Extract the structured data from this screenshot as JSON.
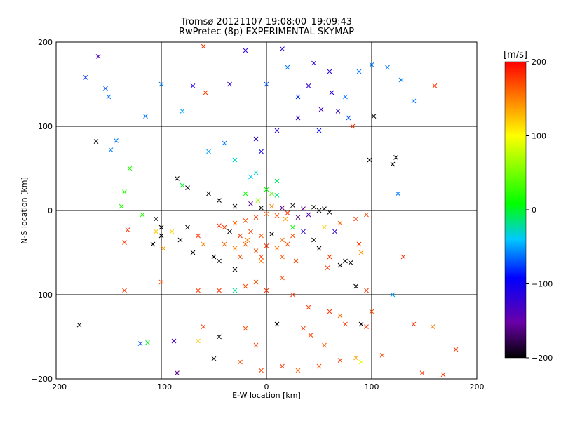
{
  "title_line1": "Tromsø 20121107 19:08:00–19:09:43",
  "title_line2": "RwPretec (8p) EXPERIMENTAL SKYMAP",
  "chart_data": {
    "type": "scatter",
    "title": "Tromsø 20121107 19:08:00–19:09:43 / RwPretec (8p) EXPERIMENTAL SKYMAP",
    "xlabel": "E-W location [km]",
    "ylabel": "N-S location [km]",
    "xlim": [
      -200,
      200
    ],
    "ylim": [
      -200,
      200
    ],
    "xticks": [
      -200,
      -100,
      0,
      100,
      200
    ],
    "yticks": [
      -200,
      -100,
      0,
      100,
      200
    ],
    "grid": true,
    "colorbar": {
      "label": "[m/s]",
      "range": [
        -200,
        200
      ],
      "ticks": [
        200,
        100,
        0,
        -100,
        -200
      ],
      "colormap": [
        "#000000",
        "#6a00a8",
        "#0000ff",
        "#00c8ff",
        "#00ff00",
        "#ffff00",
        "#ff0000"
      ]
    },
    "points": [
      {
        "x": -160,
        "y": 183,
        "v": -130
      },
      {
        "x": -143,
        "y": 83,
        "v": -60
      },
      {
        "x": -150,
        "y": 135,
        "v": -60
      },
      {
        "x": -100,
        "y": 150,
        "v": -60
      },
      {
        "x": -80,
        "y": 118,
        "v": -50
      },
      {
        "x": -70,
        "y": 148,
        "v": -110
      },
      {
        "x": -58,
        "y": 140,
        "v": 175
      },
      {
        "x": -20,
        "y": 190,
        "v": -120
      },
      {
        "x": 15,
        "y": 192,
        "v": -120
      },
      {
        "x": 20,
        "y": 170,
        "v": -60
      },
      {
        "x": 45,
        "y": 175,
        "v": -110
      },
      {
        "x": 60,
        "y": 165,
        "v": -120
      },
      {
        "x": 40,
        "y": 148,
        "v": -120
      },
      {
        "x": 62,
        "y": 140,
        "v": -110
      },
      {
        "x": 75,
        "y": 135,
        "v": -60
      },
      {
        "x": 88,
        "y": 165,
        "v": -60
      },
      {
        "x": 100,
        "y": 173,
        "v": -60
      },
      {
        "x": 115,
        "y": 170,
        "v": -60
      },
      {
        "x": 128,
        "y": 155,
        "v": -60
      },
      {
        "x": 160,
        "y": 148,
        "v": 180
      },
      {
        "x": 140,
        "y": 130,
        "v": -60
      },
      {
        "x": 30,
        "y": 110,
        "v": -120
      },
      {
        "x": 10,
        "y": 95,
        "v": -120
      },
      {
        "x": -10,
        "y": 85,
        "v": -120
      },
      {
        "x": -40,
        "y": 80,
        "v": -60
      },
      {
        "x": -55,
        "y": 70,
        "v": -50
      },
      {
        "x": -30,
        "y": 60,
        "v": -30
      },
      {
        "x": -10,
        "y": 45,
        "v": -30
      },
      {
        "x": 10,
        "y": 35,
        "v": -10
      },
      {
        "x": 0,
        "y": 25,
        "v": 10
      },
      {
        "x": -20,
        "y": 20,
        "v": 10
      },
      {
        "x": 10,
        "y": 18,
        "v": -15
      },
      {
        "x": 82,
        "y": 100,
        "v": 180
      },
      {
        "x": 102,
        "y": 112,
        "v": -200
      },
      {
        "x": -162,
        "y": 82,
        "v": -200
      },
      {
        "x": -85,
        "y": 38,
        "v": -200
      },
      {
        "x": -80,
        "y": 30,
        "v": 0
      },
      {
        "x": -75,
        "y": 27,
        "v": -200
      },
      {
        "x": -55,
        "y": 20,
        "v": -200
      },
      {
        "x": -45,
        "y": 12,
        "v": -200
      },
      {
        "x": -30,
        "y": 5,
        "v": -200
      },
      {
        "x": -15,
        "y": 8,
        "v": -160
      },
      {
        "x": -5,
        "y": 3,
        "v": -200
      },
      {
        "x": 5,
        "y": 5,
        "v": 150
      },
      {
        "x": 15,
        "y": 3,
        "v": -160
      },
      {
        "x": 25,
        "y": 6,
        "v": -200
      },
      {
        "x": 35,
        "y": 2,
        "v": -160
      },
      {
        "x": 45,
        "y": 4,
        "v": -200
      },
      {
        "x": 50,
        "y": 0,
        "v": -200
      },
      {
        "x": 55,
        "y": 2,
        "v": -200
      },
      {
        "x": 60,
        "y": -2,
        "v": -200
      },
      {
        "x": 40,
        "y": -5,
        "v": -140
      },
      {
        "x": 30,
        "y": -8,
        "v": -170
      },
      {
        "x": 20,
        "y": -3,
        "v": 180
      },
      {
        "x": 10,
        "y": -6,
        "v": 170
      },
      {
        "x": 0,
        "y": -4,
        "v": 160
      },
      {
        "x": -10,
        "y": -8,
        "v": 180
      },
      {
        "x": -20,
        "y": -12,
        "v": 170
      },
      {
        "x": -30,
        "y": -15,
        "v": 160
      },
      {
        "x": -40,
        "y": -20,
        "v": 175
      },
      {
        "x": -45,
        "y": -18,
        "v": 185
      },
      {
        "x": -35,
        "y": -25,
        "v": -200
      },
      {
        "x": -25,
        "y": -30,
        "v": 180
      },
      {
        "x": -15,
        "y": -25,
        "v": 175
      },
      {
        "x": -5,
        "y": -30,
        "v": 165
      },
      {
        "x": 5,
        "y": -28,
        "v": -200
      },
      {
        "x": 15,
        "y": -35,
        "v": 160
      },
      {
        "x": 25,
        "y": -30,
        "v": 170
      },
      {
        "x": -40,
        "y": -40,
        "v": 160
      },
      {
        "x": -30,
        "y": -45,
        "v": 150
      },
      {
        "x": -20,
        "y": -40,
        "v": 165
      },
      {
        "x": -10,
        "y": -48,
        "v": 170
      },
      {
        "x": 0,
        "y": -42,
        "v": 180
      },
      {
        "x": 10,
        "y": -45,
        "v": 155
      },
      {
        "x": 20,
        "y": -40,
        "v": 170
      },
      {
        "x": -50,
        "y": -55,
        "v": -200
      },
      {
        "x": -45,
        "y": -60,
        "v": -200
      },
      {
        "x": -25,
        "y": -55,
        "v": 170
      },
      {
        "x": -5,
        "y": -55,
        "v": 175
      },
      {
        "x": 15,
        "y": -55,
        "v": 165
      },
      {
        "x": -60,
        "y": -40,
        "v": 150
      },
      {
        "x": -65,
        "y": -30,
        "v": 180
      },
      {
        "x": -75,
        "y": -20,
        "v": -200
      },
      {
        "x": -82,
        "y": -35,
        "v": -200
      },
      {
        "x": -100,
        "y": -20,
        "v": -200
      },
      {
        "x": -105,
        "y": -25,
        "v": 120
      },
      {
        "x": -108,
        "y": -40,
        "v": -200
      },
      {
        "x": -132,
        "y": -23,
        "v": 180
      },
      {
        "x": -135,
        "y": -38,
        "v": 180
      },
      {
        "x": -138,
        "y": 5,
        "v": 20
      },
      {
        "x": -118,
        "y": -5,
        "v": 20
      },
      {
        "x": -105,
        "y": -10,
        "v": -200
      },
      {
        "x": -100,
        "y": -30,
        "v": -200
      },
      {
        "x": -90,
        "y": -25,
        "v": 120
      },
      {
        "x": -98,
        "y": -45,
        "v": 140
      },
      {
        "x": -70,
        "y": -50,
        "v": -200
      },
      {
        "x": -30,
        "y": -70,
        "v": -200
      },
      {
        "x": 70,
        "y": -65,
        "v": -200
      },
      {
        "x": 75,
        "y": -60,
        "v": -200
      },
      {
        "x": 80,
        "y": -62,
        "v": -200
      },
      {
        "x": 60,
        "y": -55,
        "v": 180
      },
      {
        "x": 50,
        "y": -45,
        "v": -200
      },
      {
        "x": 45,
        "y": -35,
        "v": -200
      },
      {
        "x": 35,
        "y": -25,
        "v": -120
      },
      {
        "x": 25,
        "y": -20,
        "v": 10
      },
      {
        "x": 55,
        "y": -20,
        "v": 120
      },
      {
        "x": 65,
        "y": -25,
        "v": -120
      },
      {
        "x": 70,
        "y": -15,
        "v": 160
      },
      {
        "x": 85,
        "y": -10,
        "v": 180
      },
      {
        "x": 95,
        "y": -5,
        "v": 175
      },
      {
        "x": 88,
        "y": -40,
        "v": 180
      },
      {
        "x": 90,
        "y": -50,
        "v": 140
      },
      {
        "x": 58,
        "y": -68,
        "v": 180
      },
      {
        "x": 85,
        "y": -90,
        "v": -200
      },
      {
        "x": 95,
        "y": -95,
        "v": 180
      },
      {
        "x": 120,
        "y": -100,
        "v": -50
      },
      {
        "x": 130,
        "y": -55,
        "v": 180
      },
      {
        "x": -135,
        "y": -95,
        "v": 180
      },
      {
        "x": -100,
        "y": -85,
        "v": 170
      },
      {
        "x": -65,
        "y": -95,
        "v": 175
      },
      {
        "x": -45,
        "y": -95,
        "v": 180
      },
      {
        "x": -30,
        "y": -95,
        "v": -20
      },
      {
        "x": -20,
        "y": -90,
        "v": 170
      },
      {
        "x": -10,
        "y": -85,
        "v": 165
      },
      {
        "x": 0,
        "y": -95,
        "v": 180
      },
      {
        "x": 15,
        "y": -80,
        "v": 170
      },
      {
        "x": 25,
        "y": -100,
        "v": 180
      },
      {
        "x": 40,
        "y": -115,
        "v": 175
      },
      {
        "x": 60,
        "y": -120,
        "v": 180
      },
      {
        "x": 70,
        "y": -125,
        "v": 160
      },
      {
        "x": 75,
        "y": -135,
        "v": 180
      },
      {
        "x": 90,
        "y": -135,
        "v": -200
      },
      {
        "x": 95,
        "y": -138,
        "v": 180
      },
      {
        "x": 100,
        "y": -120,
        "v": 170
      },
      {
        "x": 140,
        "y": -135,
        "v": 180
      },
      {
        "x": 158,
        "y": -138,
        "v": 150
      },
      {
        "x": -60,
        "y": -138,
        "v": 180
      },
      {
        "x": -45,
        "y": -150,
        "v": -200
      },
      {
        "x": -20,
        "y": -140,
        "v": 170
      },
      {
        "x": -10,
        "y": -160,
        "v": 175
      },
      {
        "x": 10,
        "y": -135,
        "v": -200
      },
      {
        "x": 35,
        "y": -140,
        "v": 180
      },
      {
        "x": 42,
        "y": -148,
        "v": 175
      },
      {
        "x": 55,
        "y": -160,
        "v": 165
      },
      {
        "x": -120,
        "y": -158,
        "v": -70
      },
      {
        "x": -113,
        "y": -157,
        "v": 0
      },
      {
        "x": -88,
        "y": -155,
        "v": -130
      },
      {
        "x": -65,
        "y": -155,
        "v": 120
      },
      {
        "x": -85,
        "y": -193,
        "v": -160
      },
      {
        "x": -50,
        "y": -176,
        "v": -200
      },
      {
        "x": -25,
        "y": -180,
        "v": 170
      },
      {
        "x": -5,
        "y": -190,
        "v": 175
      },
      {
        "x": 15,
        "y": -185,
        "v": 180
      },
      {
        "x": 30,
        "y": -190,
        "v": 160
      },
      {
        "x": 50,
        "y": -185,
        "v": 170
      },
      {
        "x": 70,
        "y": -178,
        "v": 180
      },
      {
        "x": 85,
        "y": -175,
        "v": 140
      },
      {
        "x": 90,
        "y": -180,
        "v": 90
      },
      {
        "x": 110,
        "y": -172,
        "v": 170
      },
      {
        "x": 148,
        "y": -193,
        "v": 180
      },
      {
        "x": 168,
        "y": -195,
        "v": 180
      },
      {
        "x": 180,
        "y": -165,
        "v": 180
      },
      {
        "x": -178,
        "y": -136,
        "v": -200
      },
      {
        "x": 120,
        "y": 55,
        "v": -200
      },
      {
        "x": 123,
        "y": 63,
        "v": -200
      },
      {
        "x": 98,
        "y": 60,
        "v": -200
      },
      {
        "x": 125,
        "y": 20,
        "v": -60
      },
      {
        "x": -135,
        "y": 22,
        "v": 20
      },
      {
        "x": -148,
        "y": 72,
        "v": -60
      },
      {
        "x": -115,
        "y": 112,
        "v": -60
      },
      {
        "x": -130,
        "y": 50,
        "v": 20
      },
      {
        "x": -172,
        "y": 158,
        "v": -80
      },
      {
        "x": -153,
        "y": 145,
        "v": -70
      },
      {
        "x": -60,
        "y": 195,
        "v": 180
      },
      {
        "x": -35,
        "y": 150,
        "v": -120
      },
      {
        "x": 0,
        "y": 150,
        "v": -70
      },
      {
        "x": 30,
        "y": 135,
        "v": -80
      },
      {
        "x": 52,
        "y": 120,
        "v": -130
      },
      {
        "x": 68,
        "y": 118,
        "v": -120
      },
      {
        "x": 78,
        "y": 110,
        "v": -70
      },
      {
        "x": 50,
        "y": 95,
        "v": -90
      },
      {
        "x": -5,
        "y": 70,
        "v": -100
      },
      {
        "x": -15,
        "y": 40,
        "v": -40
      },
      {
        "x": 5,
        "y": 20,
        "v": 40
      },
      {
        "x": -8,
        "y": 12,
        "v": 60
      },
      {
        "x": 18,
        "y": -10,
        "v": 140
      },
      {
        "x": -18,
        "y": -35,
        "v": 150
      },
      {
        "x": -5,
        "y": -60,
        "v": 155
      },
      {
        "x": 28,
        "y": -60,
        "v": 170
      }
    ]
  }
}
